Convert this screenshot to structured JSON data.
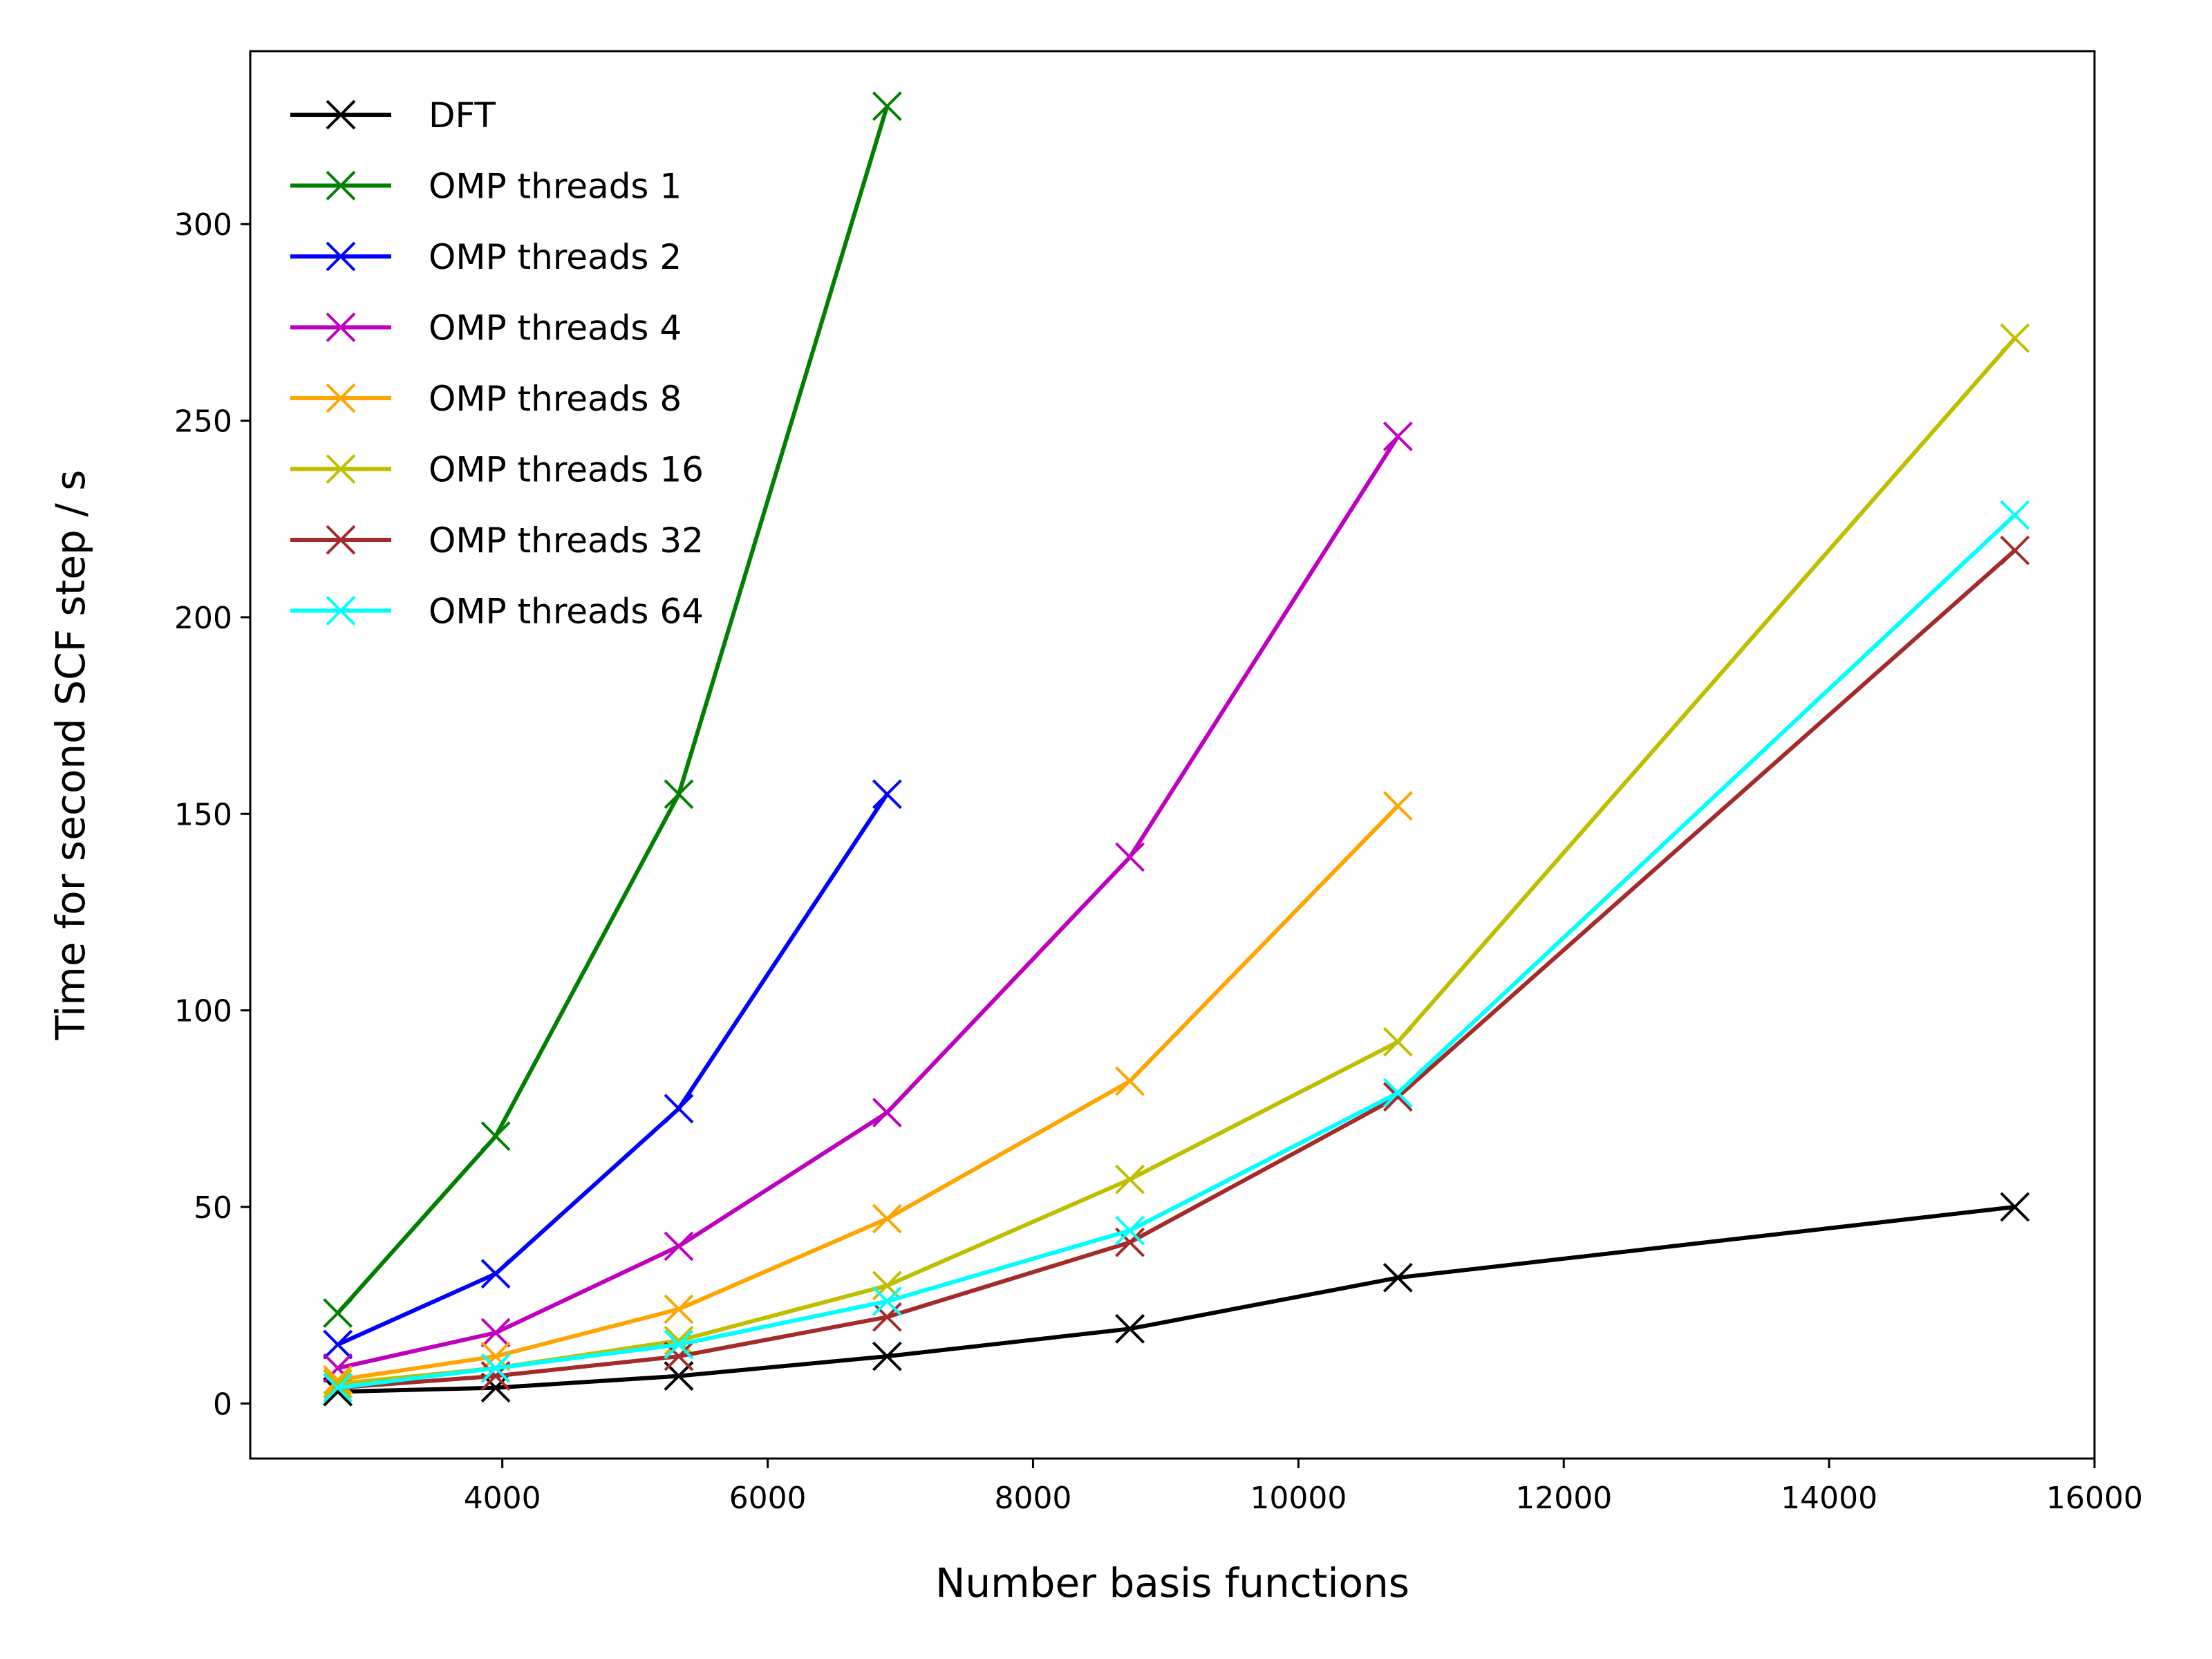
{
  "chart_data": {
    "type": "line",
    "title": "",
    "xlabel": "Number basis functions",
    "ylabel": "Time for second SCF step / s",
    "xlim": [
      2100,
      16000
    ],
    "ylim": [
      -14,
      344
    ],
    "xticks": [
      4000,
      6000,
      8000,
      10000,
      12000,
      14000,
      16000
    ],
    "yticks": [
      0,
      50,
      100,
      150,
      200,
      250,
      300
    ],
    "grid": false,
    "legend_position": "top-left",
    "series": [
      {
        "name": "DFT",
        "color": "#000000",
        "marker": "x",
        "x": [
          2760,
          3950,
          5330,
          6900,
          8730,
          10750,
          15400
        ],
        "y": [
          3,
          4,
          7,
          12,
          19,
          32,
          50
        ]
      },
      {
        "name": "OMP threads 1",
        "color": "#008000",
        "marker": "x",
        "x": [
          2760,
          3950,
          5330,
          6900
        ],
        "y": [
          23,
          68,
          155,
          330
        ]
      },
      {
        "name": "OMP threads 2",
        "color": "#0000ff",
        "marker": "x",
        "x": [
          2760,
          3950,
          5330,
          6900
        ],
        "y": [
          15,
          33,
          75,
          155
        ]
      },
      {
        "name": "OMP threads 4",
        "color": "#bf00bf",
        "marker": "x",
        "x": [
          2760,
          3950,
          5330,
          6900,
          8730,
          10750
        ],
        "y": [
          9,
          18,
          40,
          74,
          139,
          246
        ]
      },
      {
        "name": "OMP threads 8",
        "color": "#ffa500",
        "marker": "x",
        "x": [
          2760,
          3950,
          5330,
          6900,
          8730,
          10750
        ],
        "y": [
          6,
          12,
          24,
          47,
          82,
          152
        ]
      },
      {
        "name": "OMP threads 16",
        "color": "#bfbf00",
        "marker": "x",
        "x": [
          2760,
          3950,
          5330,
          6900,
          8730,
          10750,
          15400
        ],
        "y": [
          5,
          9,
          16,
          30,
          57,
          92,
          271
        ]
      },
      {
        "name": "OMP threads 32",
        "color": "#a52a2a",
        "marker": "x",
        "x": [
          2760,
          3950,
          5330,
          6900,
          8730,
          10750,
          15400
        ],
        "y": [
          4,
          7,
          12,
          22,
          41,
          78,
          217
        ]
      },
      {
        "name": "OMP threads 64",
        "color": "#00ffff",
        "marker": "x",
        "x": [
          2760,
          3950,
          5330,
          6900,
          8730,
          10750,
          15400
        ],
        "y": [
          4,
          9,
          15,
          26,
          44,
          79,
          226
        ]
      }
    ]
  }
}
